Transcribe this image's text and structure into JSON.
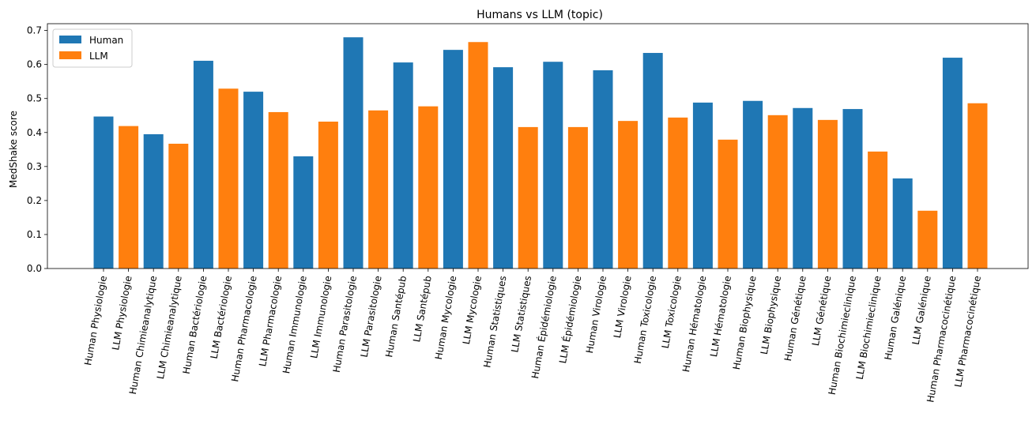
{
  "chart_data": {
    "type": "bar",
    "title": "Humans vs LLM (topic)",
    "xlabel": "",
    "ylabel": "MedShake score",
    "ylim": [
      0,
      0.72
    ],
    "yticks": [
      "0.0",
      "0.1",
      "0.2",
      "0.3",
      "0.4",
      "0.5",
      "0.6",
      "0.7"
    ],
    "grid": false,
    "legend_position": "top-left",
    "colors": {
      "Human": "#1f77b4",
      "LLM": "#ff7f0e"
    },
    "series": [
      {
        "name": "Human",
        "color": "#1f77b4"
      },
      {
        "name": "LLM",
        "color": "#ff7f0e"
      }
    ],
    "bars": [
      {
        "label": "Human Physiologie",
        "series": "Human",
        "value": 0.447
      },
      {
        "label": "LLM Physiologie",
        "series": "LLM",
        "value": 0.419
      },
      {
        "label": "Human Chimieanalytique",
        "series": "Human",
        "value": 0.395
      },
      {
        "label": "LLM Chimieanalytique",
        "series": "LLM",
        "value": 0.367
      },
      {
        "label": "Human Bactériologie",
        "series": "Human",
        "value": 0.611
      },
      {
        "label": "LLM Bactériologie",
        "series": "LLM",
        "value": 0.529
      },
      {
        "label": "Human Pharmacologie",
        "series": "Human",
        "value": 0.52
      },
      {
        "label": "LLM Pharmacologie",
        "series": "LLM",
        "value": 0.46
      },
      {
        "label": "Human Immunologie",
        "series": "Human",
        "value": 0.33
      },
      {
        "label": "LLM Immunologie",
        "series": "LLM",
        "value": 0.432
      },
      {
        "label": "Human Parasitologie",
        "series": "Human",
        "value": 0.68
      },
      {
        "label": "LLM Parasitologie",
        "series": "LLM",
        "value": 0.465
      },
      {
        "label": "Human Santépub",
        "series": "Human",
        "value": 0.606
      },
      {
        "label": "LLM Santépub",
        "series": "LLM",
        "value": 0.477
      },
      {
        "label": "Human Mycologie",
        "series": "Human",
        "value": 0.643
      },
      {
        "label": "LLM Mycologie",
        "series": "LLM",
        "value": 0.666
      },
      {
        "label": "Human Statistiques",
        "series": "Human",
        "value": 0.592
      },
      {
        "label": "LLM Statistiques",
        "series": "LLM",
        "value": 0.416
      },
      {
        "label": "Human Épidémiologie",
        "series": "Human",
        "value": 0.608
      },
      {
        "label": "LLM Épidémiologie",
        "series": "LLM",
        "value": 0.416
      },
      {
        "label": "Human Virologie",
        "series": "Human",
        "value": 0.583
      },
      {
        "label": "LLM Virologie",
        "series": "LLM",
        "value": 0.434
      },
      {
        "label": "Human Toxicologie",
        "series": "Human",
        "value": 0.634
      },
      {
        "label": "LLM Toxicologie",
        "series": "LLM",
        "value": 0.444
      },
      {
        "label": "Human Hématologie",
        "series": "Human",
        "value": 0.488
      },
      {
        "label": "LLM Hématologie",
        "series": "LLM",
        "value": 0.379
      },
      {
        "label": "Human Biophysique",
        "series": "Human",
        "value": 0.493
      },
      {
        "label": "LLM Biophysique",
        "series": "LLM",
        "value": 0.451
      },
      {
        "label": "Human Génétique",
        "series": "Human",
        "value": 0.472
      },
      {
        "label": "LLM Génétique",
        "series": "LLM",
        "value": 0.437
      },
      {
        "label": "Human Biochimieclinique",
        "series": "Human",
        "value": 0.469
      },
      {
        "label": "LLM Biochimieclinique",
        "series": "LLM",
        "value": 0.344
      },
      {
        "label": "Human Galénique",
        "series": "Human",
        "value": 0.265
      },
      {
        "label": "LLM Galénique",
        "series": "LLM",
        "value": 0.17
      },
      {
        "label": "Human Pharmacocinétique",
        "series": "Human",
        "value": 0.62
      },
      {
        "label": "LLM Pharmacocinétique",
        "series": "LLM",
        "value": 0.486
      }
    ]
  }
}
